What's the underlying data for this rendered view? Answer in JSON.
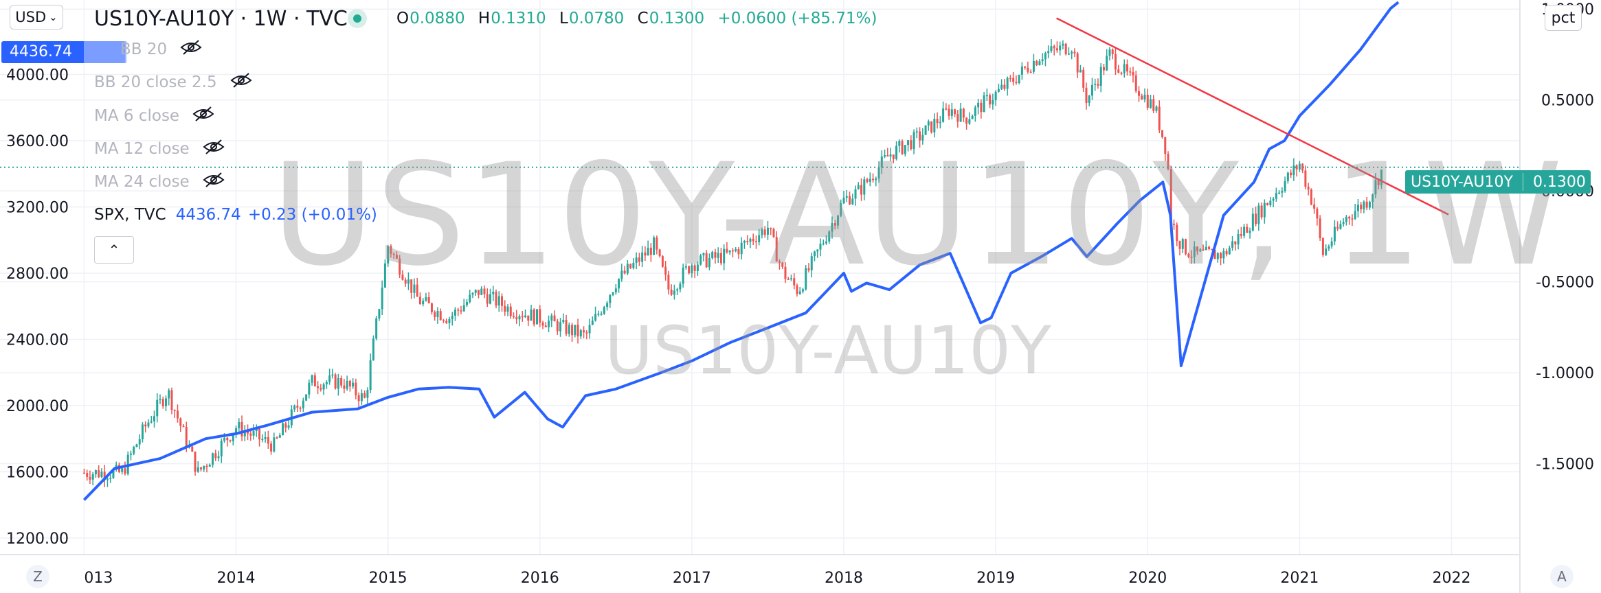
{
  "header": {
    "currency": "USD",
    "symbol_title": "US10Y-AU10Y · 1W · TVC",
    "ohlc": [
      {
        "label": "O",
        "value": "0.0880"
      },
      {
        "label": "H",
        "value": "0.1310"
      },
      {
        "label": "L",
        "value": "0.0780"
      },
      {
        "label": "C",
        "value": "0.1300"
      }
    ],
    "change": "+0.0600 (+85.71%)",
    "scale_mode": "pct"
  },
  "left_price_tag": "4436.74",
  "indicators": [
    {
      "label": "BB 20"
    },
    {
      "label": "BB 20 close 2.5"
    },
    {
      "label": "MA 6 close"
    },
    {
      "label": "MA 12 close"
    },
    {
      "label": "MA 24 close"
    }
  ],
  "spx_legend": {
    "name": "SPX, TVC",
    "value": "4436.74",
    "change": "+0.23 (+0.01%)"
  },
  "watermark": {
    "big": "US10Y-AU10Y, 1W",
    "small": "US10Y-AU10Y"
  },
  "right_tag": {
    "name": "US10Y-AU10Y",
    "value": "0.1300"
  },
  "bottom": {
    "left_button": "Z",
    "right_button": "A"
  },
  "colors": {
    "up": "#26a69a",
    "down": "#ef5350",
    "spx": "#2962ff",
    "trendline": "#f23645",
    "grid": "#eef0f5"
  },
  "chart_data": {
    "type": "line",
    "title": "US10Y-AU10Y, 1W",
    "x_ticks": [
      "013",
      "2014",
      "2015",
      "2016",
      "2017",
      "2018",
      "2019",
      "2020",
      "2021",
      "2022"
    ],
    "left_axis": {
      "ticks": [
        "1200.00",
        "1600.00",
        "2000.00",
        "2400.00",
        "2800.00",
        "3200.00",
        "3600.00",
        "4000.00"
      ],
      "range": [
        1100,
        4450
      ]
    },
    "right_axis": {
      "ticks": [
        "-1.5000",
        "-1.0000",
        "-0.5000",
        "0.0000",
        "0.5000",
        "1.0000"
      ],
      "range": [
        -2.0,
        1.05
      ]
    },
    "series": [
      {
        "name": "US10Y-AU10Y",
        "axis": "right",
        "style": "candles",
        "x": [
          2013.0,
          2013.25,
          2013.4,
          2013.55,
          2013.75,
          2014.0,
          2014.25,
          2014.5,
          2014.7,
          2014.85,
          2015.0,
          2015.1,
          2015.2,
          2015.4,
          2015.6,
          2015.8,
          2016.0,
          2016.15,
          2016.3,
          2016.5,
          2016.75,
          2016.85,
          2017.0,
          2017.25,
          2017.5,
          2017.6,
          2017.7,
          2017.85,
          2018.0,
          2018.1,
          2018.3,
          2018.5,
          2018.7,
          2018.8,
          2018.95,
          2019.1,
          2019.3,
          2019.5,
          2019.6,
          2019.75,
          2019.9,
          2020.05,
          2020.13,
          2020.15,
          2020.22,
          2020.3,
          2020.5,
          2020.65,
          2020.85,
          2021.0,
          2021.1,
          2021.15,
          2021.3,
          2021.45,
          2021.55
        ],
        "values": [
          -1.55,
          -1.55,
          -1.3,
          -1.1,
          -1.55,
          -1.3,
          -1.4,
          -1.05,
          -1.05,
          -1.15,
          -0.3,
          -0.45,
          -0.6,
          -0.7,
          -0.55,
          -0.65,
          -0.7,
          -0.75,
          -0.8,
          -0.5,
          -0.3,
          -0.55,
          -0.4,
          -0.35,
          -0.2,
          -0.45,
          -0.55,
          -0.3,
          -0.05,
          0.0,
          0.2,
          0.3,
          0.45,
          0.4,
          0.5,
          0.6,
          0.75,
          0.8,
          0.5,
          0.75,
          0.6,
          0.45,
          0.2,
          -0.15,
          -0.3,
          -0.35,
          -0.35,
          -0.2,
          0.0,
          0.15,
          -0.1,
          -0.35,
          -0.15,
          -0.05,
          0.13
        ]
      },
      {
        "name": "SPX, TVC",
        "axis": "left",
        "style": "line",
        "x": [
          2013.0,
          2013.2,
          2013.5,
          2013.8,
          2014.0,
          2014.2,
          2014.5,
          2014.8,
          2015.0,
          2015.2,
          2015.4,
          2015.6,
          2015.7,
          2015.9,
          2016.05,
          2016.15,
          2016.3,
          2016.5,
          2016.8,
          2017.0,
          2017.25,
          2017.5,
          2017.75,
          2018.0,
          2018.05,
          2018.15,
          2018.3,
          2018.5,
          2018.7,
          2018.9,
          2018.97,
          2019.1,
          2019.3,
          2019.5,
          2019.6,
          2019.8,
          2019.95,
          2020.1,
          2020.15,
          2020.22,
          2020.3,
          2020.5,
          2020.7,
          2020.8,
          2020.9,
          2021.0,
          2021.2,
          2021.4,
          2021.6,
          2021.65
        ],
        "values": [
          1430,
          1620,
          1680,
          1800,
          1830,
          1880,
          1960,
          1980,
          2050,
          2100,
          2110,
          2100,
          1930,
          2080,
          1920,
          1870,
          2060,
          2100,
          2200,
          2270,
          2380,
          2470,
          2560,
          2800,
          2690,
          2740,
          2700,
          2850,
          2920,
          2500,
          2530,
          2800,
          2900,
          3010,
          2900,
          3100,
          3240,
          3350,
          3150,
          2240,
          2500,
          3150,
          3350,
          3550,
          3600,
          3750,
          3940,
          4150,
          4400,
          4436.74
        ]
      }
    ],
    "annotations": [
      {
        "type": "trendline",
        "from": [
          2019.4,
          0.95
        ],
        "to": [
          2021.98,
          -0.13
        ]
      }
    ],
    "last_values": {
      "US10Y-AU10Y": 0.13,
      "SPX, TVC": 4436.74
    },
    "grid": true,
    "legend": "top-left"
  }
}
